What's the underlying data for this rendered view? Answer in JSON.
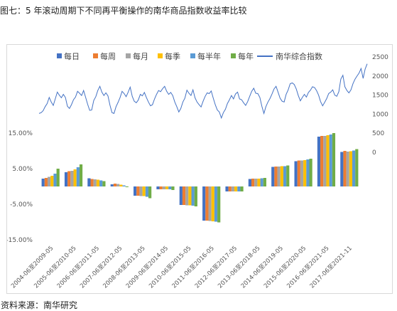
{
  "caption": "图七：5 年滚动周期下不同再平衡操作的南华商品指数收益率比较",
  "source": "资料来源：南华研究",
  "chart_data": {
    "type": "bar",
    "title": "",
    "categories": [
      "2004-06至2009-05",
      "2005-06至2010-05",
      "2006-06至2011-05",
      "2007-06至2012-05",
      "2008-06至2013-05",
      "2009-06至2014-05",
      "2010-06至2015-05",
      "2011-06至2016-05",
      "2012-06至2017-05",
      "2013-06至2018-05",
      "2014-06至2019-05",
      "2015-06至2020-05",
      "2016-06至2021-05",
      "2017-06至2021-11"
    ],
    "series": [
      {
        "name": "每日",
        "color": "#4472c4",
        "values": [
          2.2,
          4.0,
          2.3,
          0.6,
          -2.6,
          -0.8,
          -5.2,
          -9.6,
          -1.4,
          2.1,
          5.5,
          7.1,
          14.0,
          9.7
        ]
      },
      {
        "name": "每周",
        "color": "#ed7d31",
        "values": [
          2.4,
          4.3,
          2.1,
          0.8,
          -2.6,
          -0.8,
          -5.2,
          -9.6,
          -1.4,
          2.2,
          5.6,
          7.3,
          14.2,
          10.0
        ]
      },
      {
        "name": "每月",
        "color": "#a5a5a5",
        "values": [
          2.7,
          4.4,
          2.0,
          0.7,
          -2.7,
          -0.8,
          -5.3,
          -9.7,
          -1.4,
          2.2,
          5.6,
          7.3,
          14.2,
          9.8
        ]
      },
      {
        "name": "每季",
        "color": "#ffc000",
        "values": [
          3.0,
          4.8,
          1.9,
          0.5,
          -2.7,
          -0.8,
          -5.3,
          -9.8,
          -1.4,
          2.2,
          5.7,
          7.4,
          14.4,
          9.9
        ]
      },
      {
        "name": "每半年",
        "color": "#5b9bd5",
        "values": [
          3.6,
          5.4,
          1.7,
          0.3,
          -2.9,
          -0.8,
          -5.4,
          -9.9,
          -1.4,
          2.3,
          5.7,
          7.6,
          14.6,
          10.1
        ]
      },
      {
        "name": "每年",
        "color": "#70ad47",
        "values": [
          5.0,
          6.2,
          1.5,
          -0.2,
          -3.3,
          -1.0,
          -5.6,
          -10.1,
          -1.4,
          2.4,
          5.9,
          7.8,
          15.0,
          10.5
        ]
      }
    ],
    "line_series": {
      "name": "南华综合指数",
      "color": "#4472c4",
      "axis": "right",
      "values": [
        1000,
        1020,
        1070,
        1180,
        1260,
        1420,
        1300,
        1210,
        1380,
        1560,
        1480,
        1410,
        1500,
        1420,
        1190,
        1130,
        1230,
        1360,
        1430,
        1580,
        1530,
        1470,
        1600,
        1420,
        1240,
        1080,
        1090,
        1340,
        1440,
        1600,
        1710,
        1560,
        1470,
        1540,
        1460,
        1220,
        1020,
        1000,
        1180,
        1290,
        1420,
        1580,
        1520,
        1440,
        1560,
        1690,
        1450,
        1320,
        1280,
        1350,
        1500,
        1460,
        1550,
        1420,
        1300,
        1200,
        1230,
        1380,
        1500,
        1600,
        1570,
        1650,
        1710,
        1580,
        1500,
        1550,
        1470,
        1300,
        1180,
        1040,
        1130,
        1300,
        1400,
        1610,
        1530,
        1470,
        1620,
        1410,
        1300,
        1230,
        1170,
        1320,
        1450,
        1540,
        1520,
        1590,
        1400,
        1230,
        1090,
        1040,
        880,
        1020,
        1110,
        1260,
        1360,
        1470,
        1380,
        1510,
        1560,
        1380,
        1360,
        1280,
        1210,
        1310,
        1450,
        1580,
        1660,
        1530,
        1520,
        1420,
        1190,
        1000,
        1180,
        1300,
        1390,
        1510,
        1640,
        1710,
        1560,
        1400,
        1320,
        1300,
        1500,
        1620,
        1780,
        1800,
        1760,
        1640,
        1470,
        1330,
        1420,
        1500,
        1430,
        1550,
        1610,
        1700,
        1680,
        1600,
        1480,
        1310,
        1200,
        1290,
        1390,
        1520,
        1560,
        1620,
        1480,
        1450,
        1570,
        1900,
        2000,
        1700,
        1600,
        1540,
        1620,
        1780,
        1900,
        1980,
        2060,
        2180,
        1920,
        2160,
        2300
      ],
      "ylim": [
        0,
        2500
      ],
      "yticks": [
        0,
        500,
        1000,
        1500,
        2000,
        2500
      ]
    },
    "ylim": [
      -15,
      15
    ],
    "yticks": [
      "15.00%",
      "5.00%",
      "-5.00%",
      "-15.00%"
    ],
    "ytick_values": [
      15,
      5,
      -5,
      -15
    ],
    "legend_position": "top",
    "grid": false
  }
}
